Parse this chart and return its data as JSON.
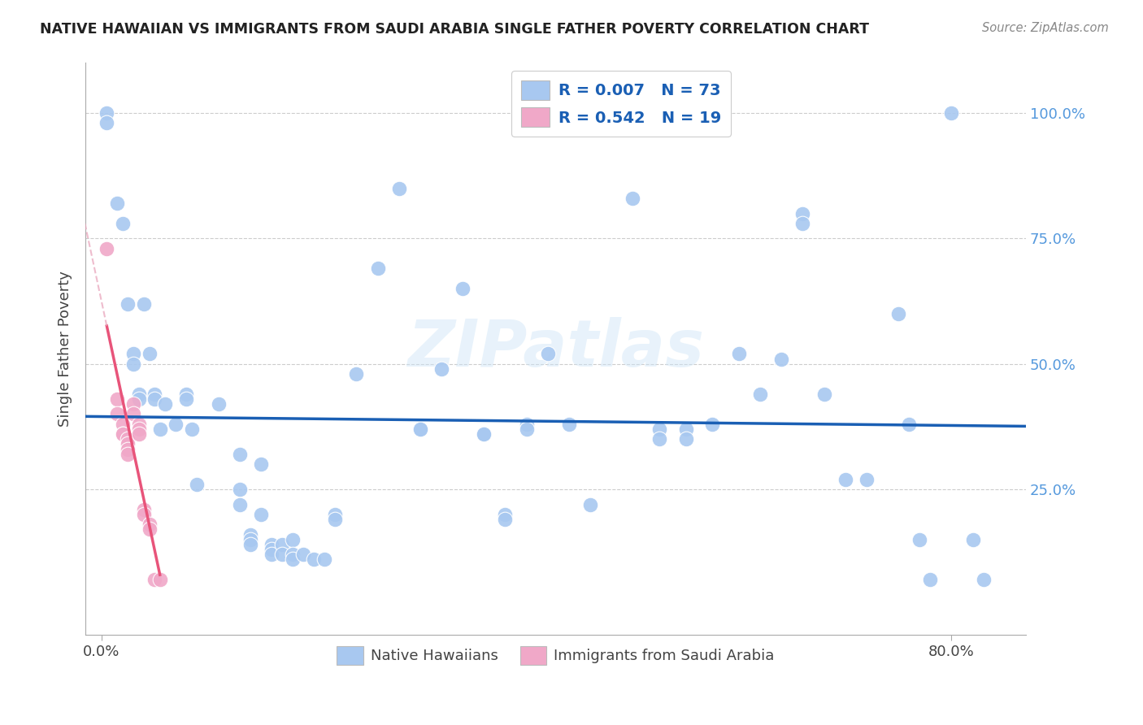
{
  "title": "NATIVE HAWAIIAN VS IMMIGRANTS FROM SAUDI ARABIA SINGLE FATHER POVERTY CORRELATION CHART",
  "source": "Source: ZipAtlas.com",
  "ylabel": "Single Father Poverty",
  "watermark": "ZIPatlas",
  "blue_color": "#a8c8f0",
  "pink_color": "#f0a8c8",
  "blue_line_color": "#1a5fb4",
  "pink_line_color": "#e8547a",
  "pink_line_color_dashed": "#e8a0b8",
  "blue_scatter": [
    [
      0.5,
      100.0
    ],
    [
      0.5,
      98.0
    ],
    [
      1.5,
      82.0
    ],
    [
      2.0,
      78.0
    ],
    [
      2.5,
      62.0
    ],
    [
      3.0,
      52.0
    ],
    [
      3.0,
      50.0
    ],
    [
      3.5,
      44.0
    ],
    [
      3.5,
      43.0
    ],
    [
      4.0,
      62.0
    ],
    [
      4.5,
      52.0
    ],
    [
      5.0,
      44.0
    ],
    [
      5.0,
      43.0
    ],
    [
      5.5,
      37.0
    ],
    [
      6.0,
      42.0
    ],
    [
      7.0,
      38.0
    ],
    [
      8.0,
      44.0
    ],
    [
      8.0,
      43.0
    ],
    [
      8.5,
      37.0
    ],
    [
      9.0,
      26.0
    ],
    [
      11.0,
      42.0
    ],
    [
      13.0,
      32.0
    ],
    [
      13.0,
      25.0
    ],
    [
      13.0,
      22.0
    ],
    [
      14.0,
      16.0
    ],
    [
      14.0,
      15.0
    ],
    [
      14.0,
      14.0
    ],
    [
      15.0,
      30.0
    ],
    [
      15.0,
      20.0
    ],
    [
      16.0,
      14.0
    ],
    [
      16.0,
      13.0
    ],
    [
      16.0,
      12.0
    ],
    [
      17.0,
      14.0
    ],
    [
      17.0,
      12.0
    ],
    [
      18.0,
      15.0
    ],
    [
      18.0,
      12.0
    ],
    [
      18.0,
      11.0
    ],
    [
      19.0,
      12.0
    ],
    [
      20.0,
      11.0
    ],
    [
      21.0,
      11.0
    ],
    [
      22.0,
      20.0
    ],
    [
      22.0,
      19.0
    ],
    [
      24.0,
      48.0
    ],
    [
      26.0,
      69.0
    ],
    [
      28.0,
      85.0
    ],
    [
      30.0,
      37.0
    ],
    [
      30.0,
      37.0
    ],
    [
      32.0,
      49.0
    ],
    [
      34.0,
      65.0
    ],
    [
      36.0,
      36.0
    ],
    [
      36.0,
      36.0
    ],
    [
      38.0,
      20.0
    ],
    [
      38.0,
      19.0
    ],
    [
      40.0,
      38.0
    ],
    [
      40.0,
      37.0
    ],
    [
      42.0,
      52.0
    ],
    [
      44.0,
      38.0
    ],
    [
      46.0,
      22.0
    ],
    [
      50.0,
      83.0
    ],
    [
      52.5,
      37.0
    ],
    [
      52.5,
      35.0
    ],
    [
      55.0,
      37.0
    ],
    [
      55.0,
      35.0
    ],
    [
      57.5,
      38.0
    ],
    [
      60.0,
      52.0
    ],
    [
      62.0,
      44.0
    ],
    [
      64.0,
      51.0
    ],
    [
      66.0,
      80.0
    ],
    [
      66.0,
      78.0
    ],
    [
      68.0,
      44.0
    ],
    [
      70.0,
      27.0
    ],
    [
      72.0,
      27.0
    ],
    [
      75.0,
      60.0
    ],
    [
      76.0,
      38.0
    ],
    [
      77.0,
      15.0
    ],
    [
      78.0,
      7.0
    ],
    [
      80.0,
      100.0
    ],
    [
      82.0,
      15.0
    ],
    [
      83.0,
      7.0
    ]
  ],
  "pink_scatter": [
    [
      0.5,
      73.0
    ],
    [
      1.5,
      43.0
    ],
    [
      1.5,
      40.0
    ],
    [
      2.0,
      38.0
    ],
    [
      2.0,
      36.0
    ],
    [
      2.0,
      36.0
    ],
    [
      2.5,
      35.0
    ],
    [
      2.5,
      34.0
    ],
    [
      2.5,
      33.0
    ],
    [
      2.5,
      32.0
    ],
    [
      3.0,
      42.0
    ],
    [
      3.0,
      40.0
    ],
    [
      3.5,
      38.0
    ],
    [
      3.5,
      37.0
    ],
    [
      3.5,
      36.0
    ],
    [
      4.0,
      21.0
    ],
    [
      4.0,
      20.0
    ],
    [
      4.5,
      18.0
    ],
    [
      4.5,
      17.0
    ],
    [
      5.0,
      7.0
    ],
    [
      5.5,
      7.0
    ]
  ],
  "xlim": [
    -1.5,
    87.0
  ],
  "ylim": [
    -4.0,
    110.0
  ],
  "x_ticks": [
    0.0,
    80.0
  ],
  "x_tick_labels": [
    "0.0%",
    "80.0%"
  ],
  "y_ticks_right": [
    25.0,
    50.0,
    75.0,
    100.0
  ],
  "y_tick_labels_right": [
    "25.0%",
    "50.0%",
    "75.0%",
    "100.0%"
  ]
}
